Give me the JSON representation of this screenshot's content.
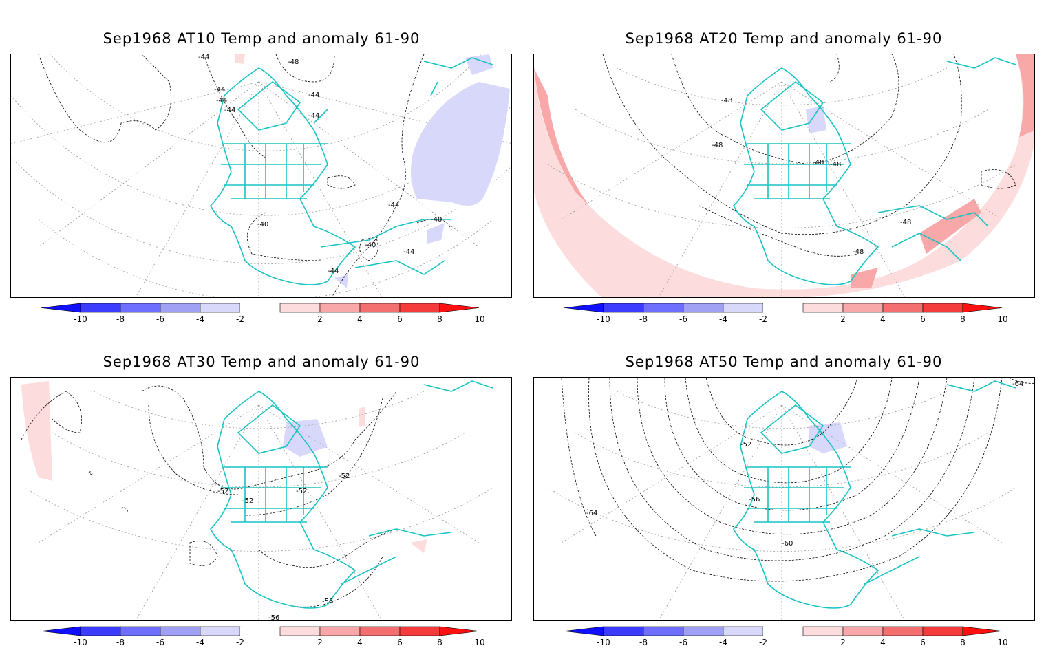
{
  "panels": [
    {
      "title": "Sep1968 AT10 Temp and anomaly 61-90",
      "contour_labels": [
        "-44",
        "-48",
        "-44",
        "-44",
        "-44",
        "-44",
        "-40",
        "-44",
        "-40",
        "-44",
        "-44",
        "-40",
        "-44"
      ]
    },
    {
      "title": "Sep1968 AT20 Temp and anomaly 61-90",
      "contour_labels": [
        "-48",
        "-48",
        "-48",
        "-48",
        "-48",
        "-48"
      ]
    },
    {
      "title": "Sep1968 AT30 Temp and anomaly 61-90",
      "contour_labels": [
        "-52",
        "-52",
        "-52",
        "-52",
        "-56",
        "-56"
      ]
    },
    {
      "title": "Sep1968 AT50 Temp and anomaly 61-90",
      "contour_labels": [
        "-52",
        "-56",
        "-60",
        "-64",
        "-64"
      ]
    }
  ],
  "colorbar": {
    "labels": [
      "-10",
      "-8",
      "-6",
      "-4",
      "-2",
      "2",
      "4",
      "6",
      "8",
      "10"
    ],
    "colors": {
      "neg_arrow": "#1010ff",
      "neg_10_8": "#3c3cff",
      "neg_8_6": "#6e6eff",
      "neg_6_4": "#a0a0f5",
      "neg_4_2": "#d8d8fb",
      "neutral": "#ffffff",
      "pos_2_4": "#fcdcdc",
      "pos_4_6": "#f8a8a8",
      "pos_6_8": "#f47070",
      "pos_8_10": "#f43c3c",
      "pos_arrow": "#ff1010"
    }
  },
  "map_style": {
    "coastline_color": "#19c3c3",
    "contour_color": "#000000",
    "grid_color": "#999999",
    "warm_anomaly_light": "#fcdcdc",
    "warm_anomaly_medium": "#f8a8a8",
    "cold_anomaly_light": "#d8d8fb"
  }
}
